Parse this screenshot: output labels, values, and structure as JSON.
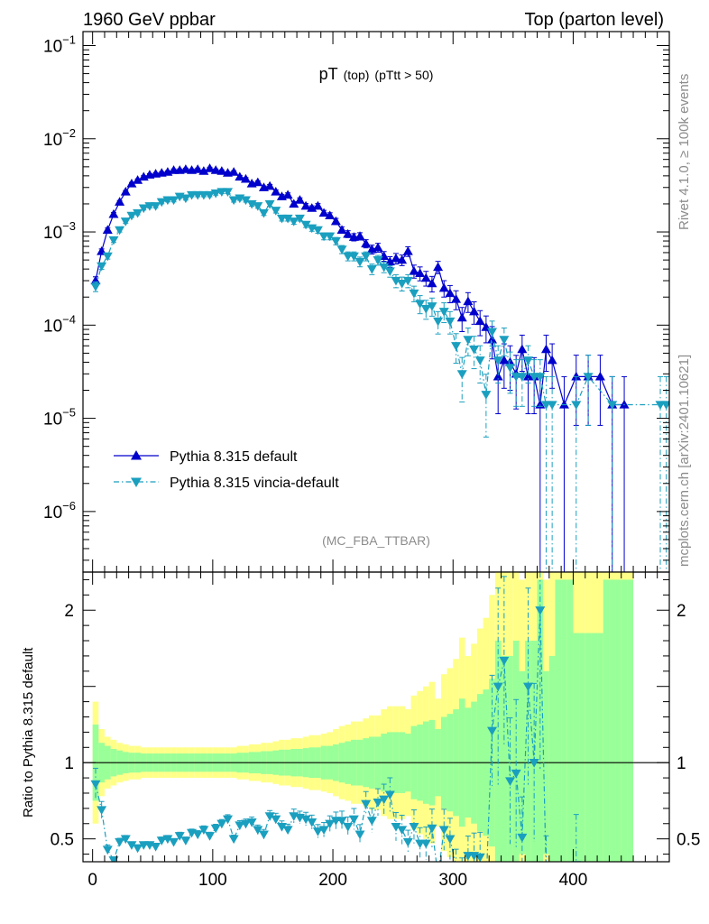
{
  "header": {
    "left": "1960 GeV ppbar",
    "right": "Top (parton level)"
  },
  "side_labels": {
    "rivet": "Rivet 4.1.0, ≥ 100k events",
    "mcplots": "mcplots.cern.ch [arXiv:2401.10621]"
  },
  "colors": {
    "default": "#0000cc",
    "vincia": "#1a9fbf",
    "band_inner": "#99ff99",
    "band_outer": "#ffff88",
    "axis": "#000000"
  },
  "chart_data": [
    {
      "type": "line",
      "title": "pT",
      "title_sub": "(top)",
      "title_cut": "(pTtt > 50)",
      "watermark": "(MC_FBA_TTBAR)",
      "xlabel": "",
      "ylabel": "",
      "xlim": [
        -8,
        480
      ],
      "ylog": true,
      "ylim_log10": [
        -6.65,
        -0.85
      ],
      "ytick_exponents": [
        -6,
        -5,
        -4,
        -3,
        -2,
        -1
      ],
      "legend_position": "lower-left",
      "series": [
        {
          "name": "Pythia 8.315 default",
          "marker": "triangle-up",
          "line": "solid",
          "x": [
            2.5,
            7.5,
            12.5,
            17.5,
            22.5,
            27.5,
            32.5,
            37.5,
            42.5,
            47.5,
            52.5,
            57.5,
            62.5,
            67.5,
            72.5,
            77.5,
            82.5,
            87.5,
            92.5,
            97.5,
            102.5,
            107.5,
            112.5,
            117.5,
            122.5,
            127.5,
            132.5,
            137.5,
            142.5,
            147.5,
            152.5,
            157.5,
            162.5,
            167.5,
            172.5,
            177.5,
            182.5,
            187.5,
            192.5,
            197.5,
            202.5,
            207.5,
            212.5,
            217.5,
            222.5,
            227.5,
            232.5,
            237.5,
            242.5,
            247.5,
            252.5,
            257.5,
            262.5,
            267.5,
            272.5,
            277.5,
            282.5,
            287.5,
            292.5,
            297.5,
            302.5,
            307.5,
            312.5,
            317.5,
            322.5,
            327.5,
            332.5,
            337.5,
            342.5,
            347.5,
            352.5,
            357.5,
            362.5,
            367.5,
            372.5,
            377.5,
            382.5,
            392.5,
            402.5,
            412.5,
            422.5,
            432.5,
            442.5
          ],
          "values": [
            0.0003,
            0.00062,
            0.00105,
            0.00155,
            0.0021,
            0.0027,
            0.0033,
            0.0036,
            0.0039,
            0.0041,
            0.0042,
            0.0043,
            0.0044,
            0.0046,
            0.0046,
            0.0047,
            0.0046,
            0.0047,
            0.0045,
            0.0048,
            0.0046,
            0.0045,
            0.0043,
            0.0044,
            0.0039,
            0.0037,
            0.0033,
            0.0034,
            0.003,
            0.0031,
            0.0027,
            0.0024,
            0.0025,
            0.002,
            0.0022,
            0.0019,
            0.0018,
            0.0019,
            0.0016,
            0.0015,
            0.0013,
            0.00105,
            0.00095,
            0.00088,
            0.0009,
            0.00075,
            0.00065,
            0.00068,
            0.00055,
            0.00048,
            0.00052,
            0.0005,
            0.00062,
            0.00038,
            0.00036,
            0.00032,
            0.00028,
            0.00042,
            0.00025,
            0.00022,
            0.00019,
            0.00012,
            0.00018,
            0.00014,
            0.00011,
            9.5e-05,
            7e-05,
            2.8e-05,
            4.2e-05,
            4e-05,
            3e-05,
            5.5e-05,
            2.8e-05,
            2.8e-05,
            1.4e-05,
            5.5e-05,
            4.2e-05,
            1.4e-05,
            2.8e-05,
            2.8e-05,
            2.8e-05,
            1.4e-05,
            1.4e-05
          ],
          "errors_rel": [
            0.1,
            0.06,
            0.05,
            0.04,
            0.035,
            0.03,
            0.03,
            0.03,
            0.03,
            0.03,
            0.03,
            0.03,
            0.03,
            0.03,
            0.03,
            0.03,
            0.03,
            0.03,
            0.03,
            0.03,
            0.03,
            0.03,
            0.03,
            0.03,
            0.035,
            0.035,
            0.04,
            0.04,
            0.04,
            0.04,
            0.045,
            0.05,
            0.05,
            0.055,
            0.055,
            0.06,
            0.06,
            0.06,
            0.065,
            0.07,
            0.075,
            0.08,
            0.085,
            0.09,
            0.09,
            0.1,
            0.11,
            0.11,
            0.12,
            0.13,
            0.13,
            0.13,
            0.12,
            0.16,
            0.17,
            0.18,
            0.19,
            0.15,
            0.2,
            0.21,
            0.23,
            0.29,
            0.24,
            0.27,
            0.3,
            0.32,
            0.38,
            0.6,
            0.5,
            0.5,
            0.58,
            0.42,
            0.6,
            0.6,
            1.0,
            0.42,
            0.5,
            1.0,
            0.7,
            0.7,
            0.7,
            1.0,
            1.0
          ]
        },
        {
          "name": "Pythia 8.315 vincia-default",
          "marker": "triangle-down",
          "line": "dash-dot",
          "x": [
            2.5,
            7.5,
            12.5,
            17.5,
            22.5,
            27.5,
            32.5,
            37.5,
            42.5,
            47.5,
            52.5,
            57.5,
            62.5,
            67.5,
            72.5,
            77.5,
            82.5,
            87.5,
            92.5,
            97.5,
            102.5,
            107.5,
            112.5,
            117.5,
            122.5,
            127.5,
            132.5,
            137.5,
            142.5,
            147.5,
            152.5,
            157.5,
            162.5,
            167.5,
            172.5,
            177.5,
            182.5,
            187.5,
            192.5,
            197.5,
            202.5,
            207.5,
            212.5,
            217.5,
            222.5,
            227.5,
            232.5,
            237.5,
            242.5,
            247.5,
            252.5,
            257.5,
            262.5,
            267.5,
            272.5,
            277.5,
            282.5,
            287.5,
            292.5,
            297.5,
            302.5,
            307.5,
            312.5,
            317.5,
            322.5,
            327.5,
            332.5,
            337.5,
            342.5,
            347.5,
            352.5,
            357.5,
            362.5,
            367.5,
            372.5,
            377.5,
            382.5,
            402.5,
            412.5,
            432.5,
            472.5,
            477.5
          ],
          "values": [
            0.00026,
            0.00043,
            0.00055,
            0.00082,
            0.00105,
            0.0013,
            0.0015,
            0.0016,
            0.0018,
            0.0019,
            0.0019,
            0.0021,
            0.0022,
            0.0022,
            0.0024,
            0.0023,
            0.0025,
            0.0025,
            0.0025,
            0.0025,
            0.0026,
            0.0027,
            0.0027,
            0.0022,
            0.0023,
            0.0022,
            0.002,
            0.0019,
            0.0016,
            0.002,
            0.0017,
            0.0014,
            0.0014,
            0.0013,
            0.0014,
            0.0012,
            0.0011,
            0.00105,
            0.0009,
            0.0009,
            0.0008,
            0.00065,
            0.00055,
            0.00055,
            0.00048,
            0.00055,
            0.0004,
            0.0005,
            0.00042,
            0.00038,
            0.0003,
            0.00028,
            0.0003,
            0.00022,
            0.00017,
            0.00015,
            0.00016,
            0.00011,
            0.00014,
            0.00011,
            6e-05,
            3e-05,
            7e-05,
            5.5e-05,
            4.2e-05,
            1.8e-05,
            8.5e-05,
            4.2e-05,
            7e-05,
            3.5e-05,
            2.8e-05,
            2.8e-05,
            4.2e-05,
            2.8e-05,
            2.8e-05,
            1.4e-05,
            1.4e-05,
            1.4e-05,
            2.8e-05,
            1.4e-05,
            1.4e-05,
            1.4e-05
          ],
          "errors_rel": [
            0.12,
            0.08,
            0.07,
            0.06,
            0.05,
            0.045,
            0.045,
            0.045,
            0.045,
            0.045,
            0.045,
            0.045,
            0.045,
            0.045,
            0.045,
            0.045,
            0.045,
            0.045,
            0.045,
            0.045,
            0.045,
            0.045,
            0.045,
            0.05,
            0.05,
            0.05,
            0.055,
            0.055,
            0.06,
            0.055,
            0.06,
            0.065,
            0.065,
            0.07,
            0.065,
            0.07,
            0.075,
            0.08,
            0.085,
            0.085,
            0.09,
            0.1,
            0.11,
            0.11,
            0.12,
            0.11,
            0.13,
            0.12,
            0.13,
            0.14,
            0.16,
            0.17,
            0.16,
            0.19,
            0.22,
            0.23,
            0.22,
            0.27,
            0.24,
            0.27,
            0.35,
            0.5,
            0.33,
            0.38,
            0.43,
            0.65,
            0.3,
            0.43,
            0.33,
            0.47,
            0.52,
            0.52,
            0.43,
            0.52,
            0.52,
            1.0,
            1.0,
            1.0,
            0.7,
            1.0,
            1.0,
            1.0
          ]
        }
      ]
    },
    {
      "type": "line",
      "title": "",
      "xlabel": "",
      "ylabel": "Ratio to Pythia 8.315 default",
      "xlim": [
        -8,
        480
      ],
      "ylim": [
        0.35,
        2.25
      ],
      "yticks": [
        0.5,
        1,
        2
      ],
      "ytick_labels": [
        "0.5",
        "1",
        "2"
      ],
      "xticks": [
        0,
        100,
        200,
        300,
        400
      ],
      "xtick_labels": [
        "0",
        "100",
        "200",
        "300",
        "400"
      ],
      "reference_line": 1,
      "bands": {
        "edges": [
          0,
          5,
          10,
          15,
          20,
          25,
          30,
          35,
          40,
          45,
          50,
          55,
          60,
          65,
          70,
          75,
          80,
          85,
          90,
          95,
          100,
          105,
          110,
          115,
          120,
          125,
          130,
          135,
          140,
          145,
          150,
          155,
          160,
          165,
          170,
          175,
          180,
          185,
          190,
          195,
          200,
          205,
          210,
          215,
          220,
          225,
          230,
          235,
          240,
          245,
          250,
          255,
          260,
          265,
          270,
          275,
          280,
          285,
          290,
          295,
          300,
          305,
          310,
          315,
          320,
          325,
          330,
          335,
          340,
          345,
          350,
          355,
          360,
          365,
          370,
          375,
          380,
          385,
          390,
          395,
          400,
          405,
          410,
          415,
          420,
          425,
          430,
          435,
          440,
          445,
          450
        ],
        "inner_rel": [
          0.25,
          0.13,
          0.11,
          0.09,
          0.08,
          0.07,
          0.065,
          0.065,
          0.06,
          0.06,
          0.06,
          0.06,
          0.06,
          0.06,
          0.06,
          0.06,
          0.06,
          0.06,
          0.06,
          0.06,
          0.06,
          0.06,
          0.06,
          0.06,
          0.065,
          0.065,
          0.07,
          0.07,
          0.075,
          0.075,
          0.08,
          0.085,
          0.085,
          0.09,
          0.09,
          0.095,
          0.1,
          0.1,
          0.11,
          0.11,
          0.12,
          0.13,
          0.14,
          0.15,
          0.15,
          0.16,
          0.17,
          0.17,
          0.19,
          0.2,
          0.2,
          0.2,
          0.19,
          0.24,
          0.25,
          0.27,
          0.28,
          0.22,
          0.3,
          0.32,
          0.35,
          0.42,
          0.36,
          0.4,
          0.45,
          0.48,
          0.55,
          0.8,
          0.7,
          0.7,
          0.8,
          0.6,
          0.8,
          0.8,
          1.2,
          0.6,
          0.7,
          1.2,
          1.2,
          1.2,
          0.85,
          0.85,
          0.85,
          0.85,
          0.85,
          1.2,
          1.2,
          1.2,
          1.2,
          1.2
        ],
        "outer_rel": [
          0.4,
          0.22,
          0.17,
          0.15,
          0.13,
          0.12,
          0.11,
          0.11,
          0.1,
          0.1,
          0.1,
          0.1,
          0.1,
          0.1,
          0.1,
          0.1,
          0.1,
          0.1,
          0.1,
          0.1,
          0.1,
          0.1,
          0.1,
          0.1,
          0.11,
          0.11,
          0.12,
          0.12,
          0.13,
          0.13,
          0.14,
          0.15,
          0.15,
          0.16,
          0.16,
          0.17,
          0.18,
          0.18,
          0.19,
          0.2,
          0.22,
          0.24,
          0.25,
          0.27,
          0.27,
          0.29,
          0.31,
          0.31,
          0.35,
          0.37,
          0.37,
          0.37,
          0.35,
          0.44,
          0.47,
          0.5,
          0.53,
          0.42,
          0.58,
          0.62,
          0.68,
          0.82,
          0.7,
          0.78,
          0.88,
          0.95,
          1.1,
          1.6,
          1.4,
          1.4,
          1.6,
          1.2,
          1.6,
          1.6,
          2.4,
          1.2,
          1.4,
          2.4,
          2.4,
          2.4,
          1.7,
          1.7,
          1.7,
          1.7,
          1.7,
          2.4,
          2.4,
          2.4,
          2.4,
          2.4
        ]
      },
      "series": [
        {
          "name": "Pythia 8.315 vincia-default",
          "marker": "triangle-down",
          "line": "dash-dot",
          "x": [
            2.5,
            7.5,
            12.5,
            17.5,
            22.5,
            27.5,
            32.5,
            37.5,
            42.5,
            47.5,
            52.5,
            57.5,
            62.5,
            67.5,
            72.5,
            77.5,
            82.5,
            87.5,
            92.5,
            97.5,
            102.5,
            107.5,
            112.5,
            117.5,
            122.5,
            127.5,
            132.5,
            137.5,
            142.5,
            147.5,
            152.5,
            157.5,
            162.5,
            167.5,
            172.5,
            177.5,
            182.5,
            187.5,
            192.5,
            197.5,
            202.5,
            207.5,
            212.5,
            217.5,
            222.5,
            227.5,
            232.5,
            237.5,
            242.5,
            247.5,
            252.5,
            257.5,
            262.5,
            267.5,
            272.5,
            277.5,
            282.5,
            287.5,
            292.5,
            297.5,
            302.5,
            307.5,
            312.5,
            317.5,
            322.5,
            327.5,
            332.5,
            337.5,
            342.5,
            347.5,
            352.5,
            357.5,
            362.5,
            367.5,
            372.5,
            377.5,
            402.5
          ],
          "values": [
            0.86,
            0.69,
            0.43,
            0.36,
            0.48,
            0.5,
            0.46,
            0.44,
            0.46,
            0.46,
            0.45,
            0.49,
            0.5,
            0.48,
            0.52,
            0.49,
            0.54,
            0.53,
            0.56,
            0.52,
            0.57,
            0.6,
            0.63,
            0.5,
            0.59,
            0.6,
            0.61,
            0.56,
            0.53,
            0.65,
            0.63,
            0.58,
            0.56,
            0.65,
            0.64,
            0.63,
            0.61,
            0.55,
            0.56,
            0.6,
            0.62,
            0.62,
            0.58,
            0.63,
            0.53,
            0.73,
            0.62,
            0.74,
            0.76,
            0.79,
            0.58,
            0.56,
            0.48,
            0.58,
            0.47,
            0.47,
            0.57,
            0.26,
            0.56,
            0.5,
            0.32,
            0.25,
            0.39,
            0.39,
            0.38,
            0.19,
            1.21,
            1.5,
            1.67,
            0.88,
            0.93,
            0.51,
            1.5,
            1.0,
            2.0,
            0.26,
            0.33
          ]
        }
      ]
    }
  ]
}
